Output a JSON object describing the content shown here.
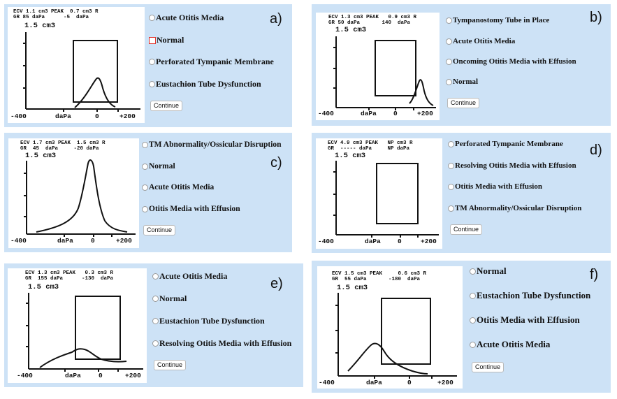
{
  "button_label": "Continue",
  "x_labels": {
    "min": "-400",
    "mid": "daPa",
    "zero": "0",
    "max": "+200"
  },
  "panels": [
    {
      "label": "a)",
      "header_line1": "ECV 1.1 cm3 PEAK  0.7 cm3 R",
      "header_line2": "GR 85 daPa      -5  daPa",
      "scale": "1.5 cm3",
      "options": [
        "Acute Otitis Media",
        "Normal",
        "Perforated Tympanic Membrane",
        "Eustachion Tube Dysfunction"
      ],
      "selected": 1
    },
    {
      "label": "b)",
      "header_line1": "ECV 1.3 cm3 PEAK   0.9 cm3 R",
      "header_line2": "GR 50 daPa       140  daPa",
      "scale": "1.5 cm3",
      "options": [
        "Tympanostomy Tube in Place",
        "Acute Otitis Media",
        "Oncoming Otitis Media with Effusion",
        "Normal"
      ],
      "selected": -1
    },
    {
      "label": "c)",
      "header_line1": "ECV 1.7 cm3 PEAK  1.5 cm3 R",
      "header_line2": "GR  45  daPa     -20 daPa",
      "scale": "1.5 cm3",
      "options": [
        "TM Abnormality/Ossicular Disruption",
        "Normal",
        "Acute Otitis Media",
        "Otitis Media with Effusion"
      ],
      "selected": -1
    },
    {
      "label": "d)",
      "header_line1": "ECV 4.9 cm3 PEAK   NP cm3 R",
      "header_line2": "GR  ----- daPa     NP daPa",
      "scale": "1.5 cm3",
      "options": [
        "Perforated Tympanic Membrane",
        "Resolving Otitis Media with Effusion",
        "Otitis Media with Effusion",
        "TM Abnormality/Ossicular Disruption"
      ],
      "selected": -1
    },
    {
      "label": "e)",
      "header_line1": "ECV 1.3 cm3 PEAK   0.3 cm3 R",
      "header_line2": "GR  155 daPa      -130  daPa",
      "scale": "1.5 cm3",
      "options": [
        "Acute Otitis Media",
        "Normal",
        "Eustachion Tube Dysfunction",
        "Resolving Otitis Media with Effusion"
      ],
      "selected": -1
    },
    {
      "label": "f)",
      "header_line1": "ECV 1.5 cm3 PEAK     0.6 cm3 R",
      "header_line2": "GR  55 daPa       -180  daPa",
      "scale": "1.5 cm3",
      "options": [
        "Normal",
        "Eustachion Tube Dysfunction",
        "Otitis Media with Effusion",
        "Acute Otitis Media"
      ],
      "selected": -1
    }
  ]
}
